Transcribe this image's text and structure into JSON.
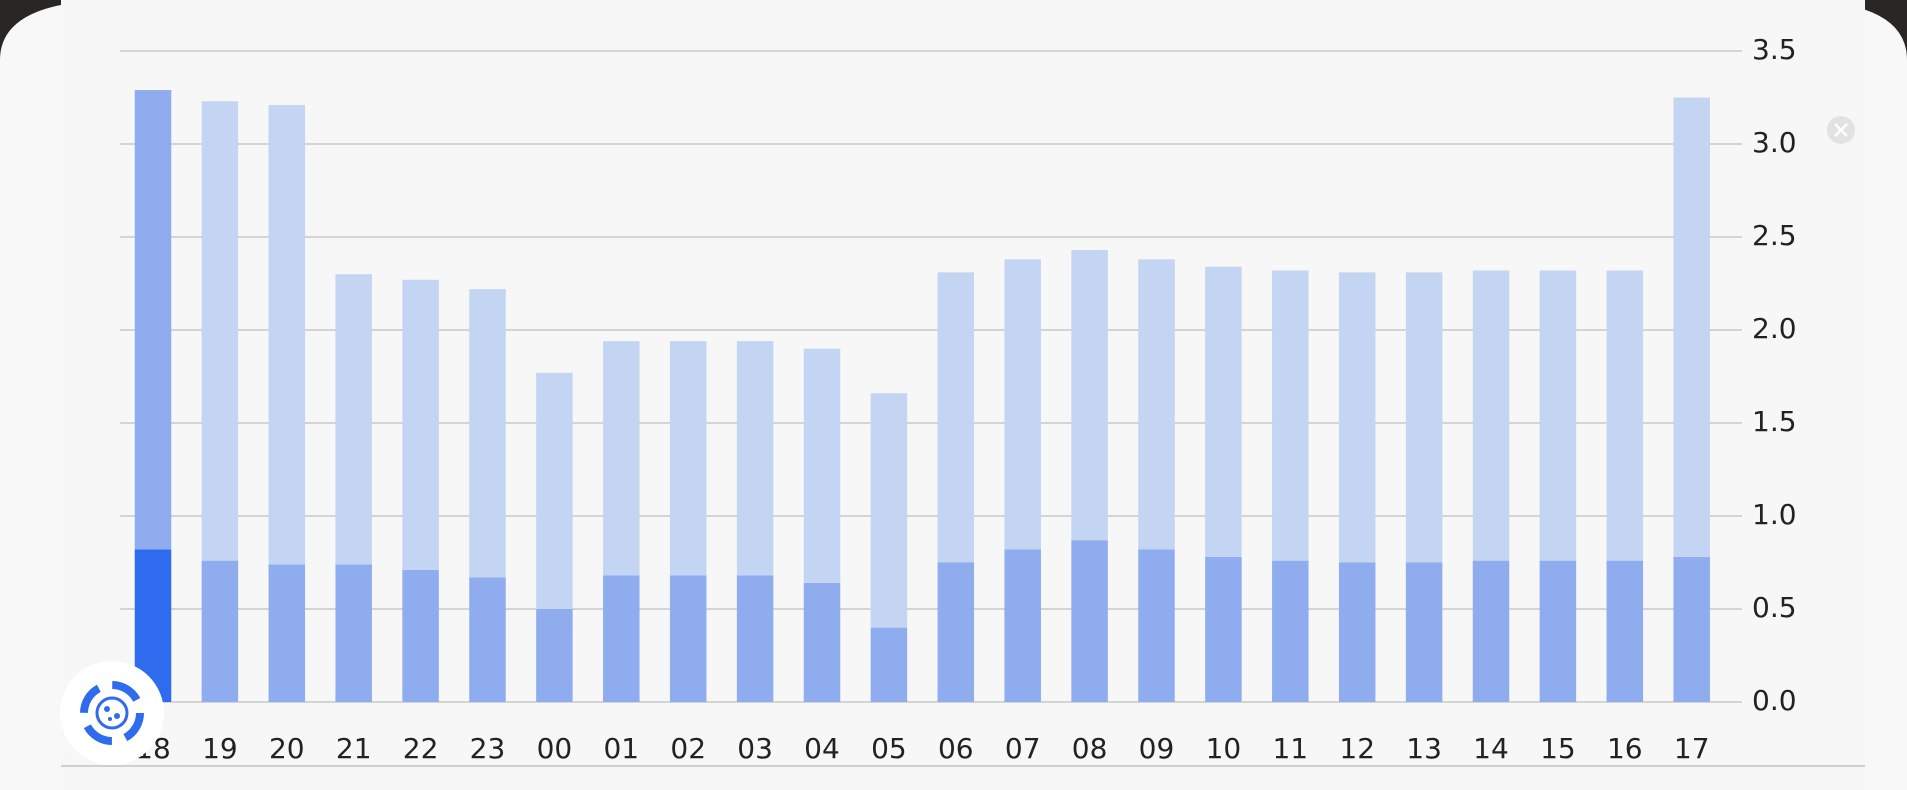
{
  "chart_data": {
    "type": "stacked_bar",
    "categories": [
      "18",
      "19",
      "20",
      "21",
      "22",
      "23",
      "00",
      "01",
      "02",
      "03",
      "04",
      "05",
      "06",
      "07",
      "08",
      "09",
      "10",
      "11",
      "12",
      "13",
      "14",
      "15",
      "16",
      "17"
    ],
    "series": [
      {
        "color": "#8fadee",
        "values": [
          0.82,
          0.76,
          0.74,
          0.74,
          0.71,
          0.67,
          0.5,
          0.68,
          0.68,
          0.68,
          0.64,
          0.4,
          0.75,
          0.82,
          0.87,
          0.82,
          0.78,
          0.76,
          0.75,
          0.75,
          0.76,
          0.76,
          0.76,
          0.78
        ]
      },
      {
        "color": "#c4d5f3",
        "values": [
          2.47,
          2.47,
          2.47,
          1.56,
          1.56,
          1.55,
          1.27,
          1.26,
          1.26,
          1.26,
          1.26,
          1.26,
          1.56,
          1.56,
          1.56,
          1.56,
          1.56,
          1.56,
          1.56,
          1.56,
          1.56,
          1.56,
          1.56,
          2.47
        ]
      }
    ],
    "highlight": {
      "index": 0,
      "colors": [
        "#2f6bef",
        "#8fadee"
      ]
    },
    "ylim": [
      0,
      3.5
    ],
    "yticks": [
      {
        "value": 0,
        "label": "0.0"
      },
      0.5,
      {
        "value": 1,
        "label": "1.0"
      },
      1.5,
      {
        "value": 2,
        "label": "2.0"
      },
      2.5,
      {
        "value": 3,
        "label": "3.0"
      },
      3.5
    ],
    "grid": true
  }
}
